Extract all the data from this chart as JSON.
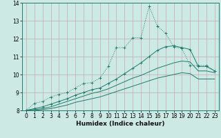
{
  "xlabel": "Humidex (Indice chaleur)",
  "xlim": [
    -0.5,
    23.5
  ],
  "ylim": [
    8,
    14
  ],
  "xticks": [
    0,
    1,
    2,
    3,
    4,
    5,
    6,
    7,
    8,
    9,
    10,
    11,
    12,
    13,
    14,
    15,
    16,
    17,
    18,
    19,
    20,
    21,
    22,
    23
  ],
  "yticks": [
    8,
    9,
    10,
    11,
    12,
    13,
    14
  ],
  "bg_color": "#cce9e4",
  "grid_color": "#c4a8b0",
  "line_color": "#1e7a6e",
  "line1_y": [
    8.0,
    8.4,
    8.5,
    8.75,
    8.9,
    9.0,
    9.25,
    9.5,
    9.55,
    9.8,
    10.45,
    11.5,
    11.5,
    12.05,
    12.05,
    13.8,
    12.7,
    12.3,
    11.55,
    11.45,
    10.5,
    10.5,
    10.5,
    10.2
  ],
  "line2_y": [
    8.0,
    8.1,
    8.2,
    8.35,
    8.5,
    8.65,
    8.85,
    9.0,
    9.15,
    9.25,
    9.5,
    9.75,
    10.05,
    10.35,
    10.65,
    11.0,
    11.35,
    11.55,
    11.6,
    11.5,
    11.4,
    10.45,
    10.45,
    10.2
  ],
  "line3_y": [
    8.0,
    8.05,
    8.1,
    8.2,
    8.35,
    8.5,
    8.65,
    8.8,
    8.95,
    9.05,
    9.2,
    9.4,
    9.6,
    9.8,
    9.95,
    10.15,
    10.35,
    10.5,
    10.65,
    10.75,
    10.7,
    10.2,
    10.2,
    10.1
  ],
  "line4_y": [
    8.0,
    8.0,
    8.05,
    8.1,
    8.2,
    8.3,
    8.45,
    8.55,
    8.65,
    8.75,
    8.9,
    9.05,
    9.2,
    9.35,
    9.5,
    9.65,
    9.8,
    9.9,
    10.0,
    10.1,
    10.05,
    9.75,
    9.75,
    9.75
  ]
}
